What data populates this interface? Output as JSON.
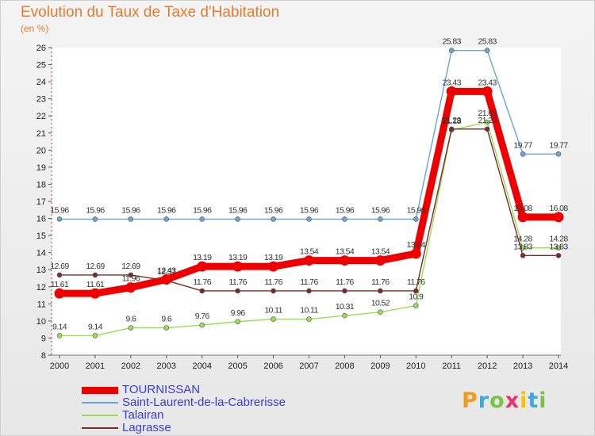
{
  "chart_data": {
    "type": "line",
    "title": "Evolution du Taux de Taxe d'Habitation",
    "unit_label": "(en %)",
    "x": [
      "2000",
      "2001",
      "2002",
      "2003",
      "2004",
      "2005",
      "2006",
      "2007",
      "2008",
      "2009",
      "2010",
      "2011",
      "2012",
      "2013",
      "2014"
    ],
    "ylim": [
      8,
      26
    ],
    "yticks": [
      8,
      9,
      10,
      11,
      12,
      13,
      14,
      15,
      16,
      17,
      18,
      19,
      20,
      21,
      22,
      23,
      24,
      25,
      26
    ],
    "grid": false,
    "legend_position": "bottom-left",
    "series": [
      {
        "name": "TOURNISSAN",
        "color": "#ee0000",
        "values": [
          11.61,
          11.61,
          11.96,
          12.43,
          13.19,
          13.19,
          13.19,
          13.54,
          13.54,
          13.54,
          13.94,
          23.43,
          23.43,
          16.08,
          16.08
        ],
        "labels": [
          "11.61",
          "11.61",
          "11.96",
          "12.43",
          "13.19",
          "13.19",
          "13.19",
          "13.54",
          "13.54",
          "13.54",
          "13.94",
          "23.43",
          "23.43",
          "16.08",
          "16.08"
        ]
      },
      {
        "name": "Saint-Laurent-de-la-Cabrerisse",
        "color": "#6aa3d6",
        "values": [
          15.96,
          15.96,
          15.96,
          15.96,
          15.96,
          15.96,
          15.96,
          15.96,
          15.96,
          15.96,
          15.96,
          25.83,
          25.83,
          19.77,
          19.77
        ],
        "labels": [
          "15.96",
          "15.96",
          "15.96",
          "15.96",
          "15.96",
          "15.96",
          "15.96",
          "15.96",
          "15.96",
          "15.96",
          "15.96",
          "25.83",
          "25.83",
          "19.77",
          "19.77"
        ]
      },
      {
        "name": "Talairan",
        "color": "#99dd55",
        "values": [
          9.14,
          9.14,
          9.6,
          9.6,
          9.76,
          9.96,
          10.11,
          10.11,
          10.31,
          10.52,
          10.9,
          21.18,
          21.63,
          14.28,
          14.28
        ],
        "labels": [
          "9.14",
          "9.14",
          "9.6",
          "9.6",
          "9.76",
          "9.96",
          "10.11",
          "10.11",
          "10.31",
          "10.52",
          "10.9",
          "21.18",
          "21.63",
          "14.28",
          "14.28"
        ]
      },
      {
        "name": "Lagrasse",
        "color": "#7a2a2a",
        "values": [
          12.69,
          12.69,
          12.69,
          12.37,
          11.76,
          11.76,
          11.76,
          11.76,
          11.76,
          11.76,
          11.76,
          21.23,
          21.23,
          13.83,
          13.83
        ],
        "labels": [
          "12.69",
          "12.69",
          "12.69",
          "12.37",
          "11.76",
          "11.76",
          "11.76",
          "11.76",
          "11.76",
          "11.76",
          "11.76",
          "21.23",
          "21.23",
          "13.83",
          "13.83"
        ]
      }
    ]
  },
  "branding": {
    "logo_letters": [
      "P",
      "r",
      "o",
      "x",
      "i",
      "t",
      "i"
    ],
    "logo_colors": [
      "#f39a1d",
      "#3fa7e0",
      "#7cc242",
      "#e8336d",
      "#f5c400",
      "#3fa7e0",
      "#7cc242"
    ]
  }
}
